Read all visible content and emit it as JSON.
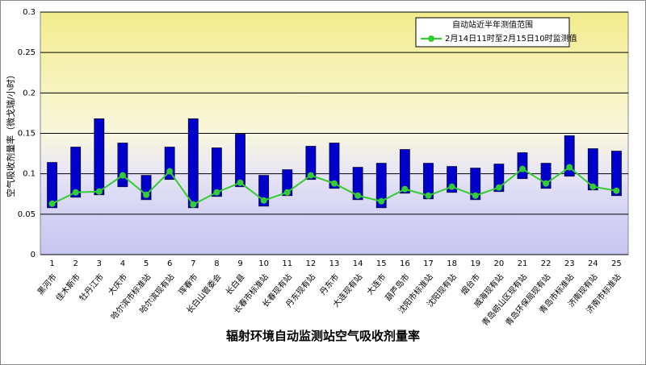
{
  "chart_data": {
    "type": "range",
    "title": "辐射环境自动监测站空气吸收剂量率",
    "y_label": "空气吸收剂量率（微戈瑞/小时）",
    "categories": [
      "1",
      "2",
      "3",
      "4",
      "5",
      "6",
      "7",
      "8",
      "9",
      "10",
      "11",
      "12",
      "13",
      "14",
      "15",
      "16",
      "17",
      "18",
      "19",
      "20",
      "21",
      "22",
      "23",
      "24",
      "25"
    ],
    "station_names": [
      "黑河市",
      "佳木斯市",
      "牡丹江市",
      "大庆市",
      "哈尔滨市标准站",
      "哈尔滨现有站",
      "珲春市",
      "长白山管委会",
      "长白县",
      "长春市标准站",
      "长春现有站",
      "丹东现有站",
      "丹东市",
      "大连现有站",
      "大连市",
      "葫芦岛市",
      "沈阳市标准站",
      "沈阳现有站",
      "烟台市",
      "威海现有站",
      "青岛崂山区现有站",
      "青岛环保局现有站",
      "青岛市标准站",
      "济南现有站",
      "济南市标准站"
    ],
    "series": [
      {
        "name": "自动站近半年测值范围",
        "type": "range",
        "color": "#0000cc",
        "low": [
          0.058,
          0.071,
          0.074,
          0.084,
          0.068,
          0.093,
          0.058,
          0.072,
          0.084,
          0.06,
          0.073,
          0.093,
          0.082,
          0.068,
          0.058,
          0.076,
          0.069,
          0.077,
          0.068,
          0.078,
          0.094,
          0.082,
          0.097,
          0.08,
          0.073
        ],
        "high": [
          0.114,
          0.133,
          0.168,
          0.138,
          0.098,
          0.133,
          0.168,
          0.132,
          0.149,
          0.098,
          0.105,
          0.134,
          0.138,
          0.108,
          0.113,
          0.13,
          0.113,
          0.109,
          0.107,
          0.112,
          0.126,
          0.113,
          0.147,
          0.131,
          0.128
        ]
      },
      {
        "name": "2月14日11时至2月15日10时监测值",
        "type": "line",
        "color": "#33cc33",
        "values": [
          0.063,
          0.077,
          0.078,
          0.098,
          0.074,
          0.103,
          0.062,
          0.077,
          0.089,
          0.067,
          0.077,
          0.098,
          0.088,
          0.073,
          0.066,
          0.081,
          0.073,
          0.084,
          0.073,
          0.083,
          0.106,
          0.088,
          0.108,
          0.084,
          0.079
        ]
      }
    ],
    "ylim": [
      0,
      0.3
    ],
    "yticks": [
      0,
      0.05,
      0.1,
      0.15,
      0.2,
      0.25,
      0.3
    ],
    "grid": true
  }
}
